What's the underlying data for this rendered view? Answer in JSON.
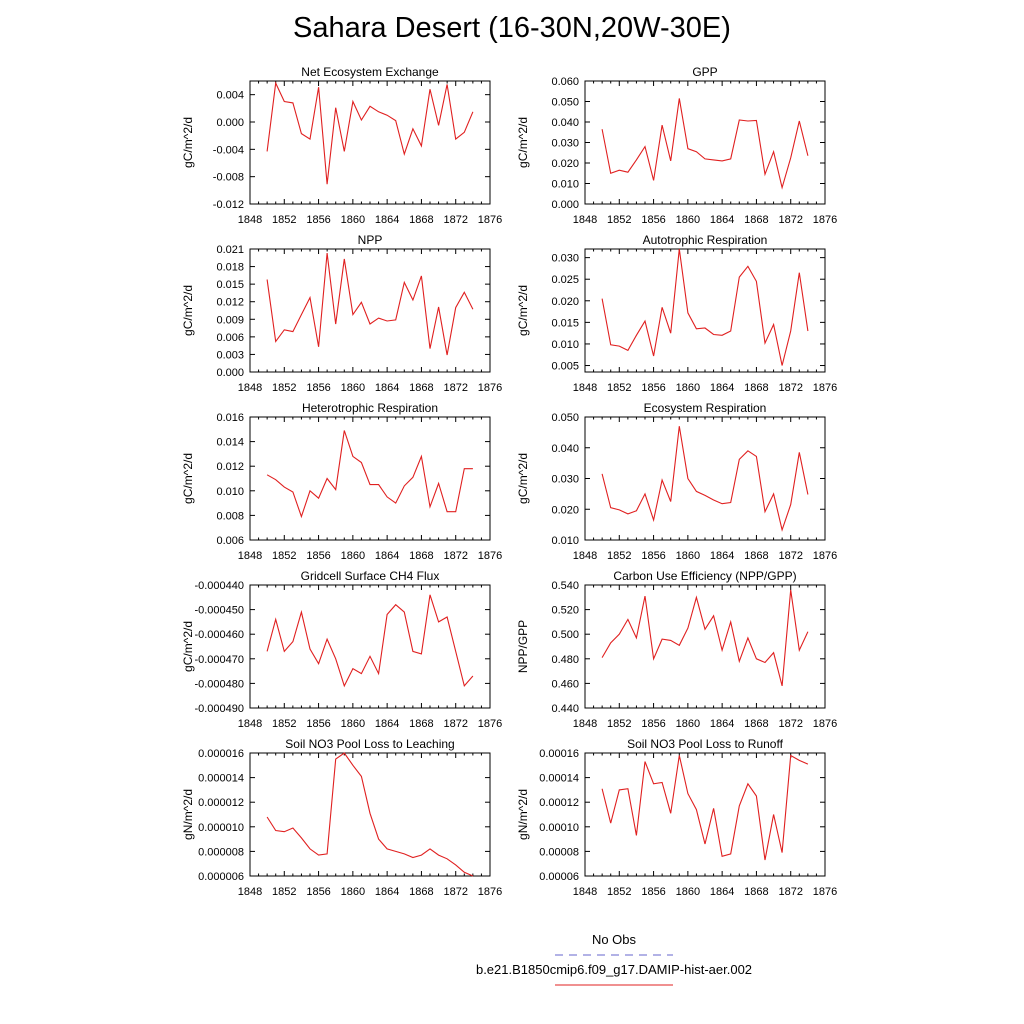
{
  "title": "Sahara Desert (16-30N,20W-30E)",
  "legend": {
    "obs_label": "No Obs",
    "obs_color": "#6666cc",
    "model_label": "b.e21.B1850cmip6.f09_g17.DAMIP-hist-aer.002",
    "model_color": "#e02020"
  },
  "chart_data": [
    {
      "type": "line",
      "title": "Net Ecosystem Exchange",
      "ylabel": "gC/m^2/d",
      "xlim": [
        1848,
        1876
      ],
      "xticks": [
        "1848",
        "1852",
        "1856",
        "1860",
        "1864",
        "1868",
        "1872",
        "1876"
      ],
      "ylim": [
        -0.012,
        0.006
      ],
      "yticks": [
        "-0.012",
        "-0.008",
        "-0.004",
        "0.000",
        "0.004"
      ],
      "x": [
        1850,
        1851,
        1852,
        1853,
        1854,
        1855,
        1856,
        1857,
        1858,
        1859,
        1860,
        1861,
        1862,
        1863,
        1864,
        1865,
        1866,
        1867,
        1868,
        1869,
        1870,
        1871,
        1872,
        1873,
        1874
      ],
      "values": [
        -0.0043,
        0.0057,
        0.003,
        0.0028,
        -0.0017,
        -0.0025,
        0.0051,
        -0.0091,
        0.0021,
        -0.0043,
        0.003,
        0.0003,
        0.0023,
        0.0015,
        0.001,
        0.0002,
        -0.0047,
        -0.001,
        -0.0035,
        0.0048,
        -0.0005,
        0.0055,
        -0.0025,
        -0.0015,
        0.0015
      ]
    },
    {
      "type": "line",
      "title": "GPP",
      "ylabel": "gC/m^2/d",
      "xlim": [
        1848,
        1876
      ],
      "xticks": [
        "1848",
        "1852",
        "1856",
        "1860",
        "1864",
        "1868",
        "1872",
        "1876"
      ],
      "ylim": [
        0.0,
        0.06
      ],
      "yticks": [
        "0.000",
        "0.010",
        "0.020",
        "0.030",
        "0.040",
        "0.050",
        "0.060"
      ],
      "x": [
        1850,
        1851,
        1852,
        1853,
        1854,
        1855,
        1856,
        1857,
        1858,
        1859,
        1860,
        1861,
        1862,
        1863,
        1864,
        1865,
        1866,
        1867,
        1868,
        1869,
        1870,
        1871,
        1872,
        1873,
        1874
      ],
      "values": [
        0.0365,
        0.015,
        0.0165,
        0.0155,
        0.0215,
        0.028,
        0.0115,
        0.0385,
        0.021,
        0.0515,
        0.027,
        0.0255,
        0.022,
        0.0215,
        0.021,
        0.022,
        0.041,
        0.0405,
        0.0408,
        0.0145,
        0.0255,
        0.008,
        0.0225,
        0.0405,
        0.0235
      ]
    },
    {
      "type": "line",
      "title": "NPP",
      "ylabel": "gC/m^2/d",
      "xlim": [
        1848,
        1876
      ],
      "xticks": [
        "1848",
        "1852",
        "1856",
        "1860",
        "1864",
        "1868",
        "1872",
        "1876"
      ],
      "ylim": [
        0.0,
        0.021
      ],
      "yticks": [
        "0.000",
        "0.003",
        "0.006",
        "0.009",
        "0.012",
        "0.015",
        "0.018",
        "0.021"
      ],
      "x": [
        1850,
        1851,
        1852,
        1853,
        1854,
        1855,
        1856,
        1857,
        1858,
        1859,
        1860,
        1861,
        1862,
        1863,
        1864,
        1865,
        1866,
        1867,
        1868,
        1869,
        1870,
        1871,
        1872,
        1873,
        1874
      ],
      "values": [
        0.0158,
        0.0052,
        0.0072,
        0.0069,
        0.0098,
        0.0127,
        0.0043,
        0.0203,
        0.0082,
        0.0193,
        0.0098,
        0.0119,
        0.0082,
        0.0092,
        0.0087,
        0.0089,
        0.0153,
        0.0123,
        0.0164,
        0.004,
        0.0111,
        0.0029,
        0.011,
        0.0136,
        0.0107
      ]
    },
    {
      "type": "line",
      "title": "Autotrophic Respiration",
      "ylabel": "gC/m^2/d",
      "xlim": [
        1848,
        1876
      ],
      "xticks": [
        "1848",
        "1852",
        "1856",
        "1860",
        "1864",
        "1868",
        "1872",
        "1876"
      ],
      "ylim": [
        0.0035,
        0.032
      ],
      "yticks": [
        "0.005",
        "0.010",
        "0.015",
        "0.020",
        "0.025",
        "0.030"
      ],
      "x": [
        1850,
        1851,
        1852,
        1853,
        1854,
        1855,
        1856,
        1857,
        1858,
        1859,
        1860,
        1861,
        1862,
        1863,
        1864,
        1865,
        1866,
        1867,
        1868,
        1869,
        1870,
        1871,
        1872,
        1873,
        1874
      ],
      "values": [
        0.0205,
        0.0098,
        0.0095,
        0.0085,
        0.012,
        0.0153,
        0.0072,
        0.0185,
        0.0125,
        0.032,
        0.0172,
        0.0135,
        0.0137,
        0.0122,
        0.012,
        0.013,
        0.0255,
        0.028,
        0.0245,
        0.0102,
        0.0145,
        0.005,
        0.013,
        0.0265,
        0.013
      ]
    },
    {
      "type": "line",
      "title": "Heterotrophic Respiration",
      "ylabel": "gC/m^2/d",
      "xlim": [
        1848,
        1876
      ],
      "xticks": [
        "1848",
        "1852",
        "1856",
        "1860",
        "1864",
        "1868",
        "1872",
        "1876"
      ],
      "ylim": [
        0.006,
        0.016
      ],
      "yticks": [
        "0.006",
        "0.008",
        "0.010",
        "0.012",
        "0.014",
        "0.016"
      ],
      "x": [
        1850,
        1851,
        1852,
        1853,
        1854,
        1855,
        1856,
        1857,
        1858,
        1859,
        1860,
        1861,
        1862,
        1863,
        1864,
        1865,
        1866,
        1867,
        1868,
        1869,
        1870,
        1871,
        1872,
        1873,
        1874
      ],
      "values": [
        0.0113,
        0.0109,
        0.0103,
        0.0099,
        0.0079,
        0.01,
        0.0094,
        0.011,
        0.0101,
        0.0149,
        0.0128,
        0.0123,
        0.0105,
        0.0105,
        0.0095,
        0.009,
        0.0104,
        0.0111,
        0.0128,
        0.0087,
        0.0106,
        0.0083,
        0.0083,
        0.0118,
        0.0118
      ]
    },
    {
      "type": "line",
      "title": "Ecosystem Respiration",
      "ylabel": "gC/m^2/d",
      "xlim": [
        1848,
        1876
      ],
      "xticks": [
        "1848",
        "1852",
        "1856",
        "1860",
        "1864",
        "1868",
        "1872",
        "1876"
      ],
      "ylim": [
        0.01,
        0.05
      ],
      "yticks": [
        "0.010",
        "0.020",
        "0.030",
        "0.040",
        "0.050"
      ],
      "x": [
        1850,
        1851,
        1852,
        1853,
        1854,
        1855,
        1856,
        1857,
        1858,
        1859,
        1860,
        1861,
        1862,
        1863,
        1864,
        1865,
        1866,
        1867,
        1868,
        1869,
        1870,
        1871,
        1872,
        1873,
        1874
      ],
      "values": [
        0.0315,
        0.0205,
        0.0198,
        0.0185,
        0.0195,
        0.025,
        0.0165,
        0.0295,
        0.0225,
        0.047,
        0.03,
        0.0258,
        0.0245,
        0.023,
        0.0218,
        0.0222,
        0.0362,
        0.039,
        0.0372,
        0.0192,
        0.025,
        0.0133,
        0.0215,
        0.0385,
        0.0248
      ]
    },
    {
      "type": "line",
      "title": "Gridcell Surface CH4 Flux",
      "ylabel": "gC/m^2/d",
      "xlim": [
        1848,
        1876
      ],
      "xticks": [
        "1848",
        "1852",
        "1856",
        "1860",
        "1864",
        "1868",
        "1872",
        "1876"
      ],
      "ylim": [
        -0.00049,
        -0.00044
      ],
      "yticks": [
        "-0.000490",
        "-0.000480",
        "-0.000470",
        "-0.000460",
        "-0.000450",
        "-0.000440"
      ],
      "x": [
        1850,
        1851,
        1852,
        1853,
        1854,
        1855,
        1856,
        1857,
        1858,
        1859,
        1860,
        1861,
        1862,
        1863,
        1864,
        1865,
        1866,
        1867,
        1868,
        1869,
        1870,
        1871,
        1872,
        1873,
        1874
      ],
      "values": [
        -0.000467,
        -0.000454,
        -0.000467,
        -0.000463,
        -0.000451,
        -0.000466,
        -0.000472,
        -0.000462,
        -0.00047,
        -0.000481,
        -0.000474,
        -0.000476,
        -0.000469,
        -0.000476,
        -0.000452,
        -0.000448,
        -0.000451,
        -0.000467,
        -0.000468,
        -0.000444,
        -0.000455,
        -0.000453,
        -0.000467,
        -0.000481,
        -0.000477
      ]
    },
    {
      "type": "line",
      "title": "Carbon Use Efficiency (NPP/GPP)",
      "ylabel": "NPP/GPP",
      "xlim": [
        1848,
        1876
      ],
      "xticks": [
        "1848",
        "1852",
        "1856",
        "1860",
        "1864",
        "1868",
        "1872",
        "1876"
      ],
      "ylim": [
        0.44,
        0.54
      ],
      "yticks": [
        "0.440",
        "0.460",
        "0.480",
        "0.500",
        "0.520",
        "0.540"
      ],
      "x": [
        1850,
        1851,
        1852,
        1853,
        1854,
        1855,
        1856,
        1857,
        1858,
        1859,
        1860,
        1861,
        1862,
        1863,
        1864,
        1865,
        1866,
        1867,
        1868,
        1869,
        1870,
        1871,
        1872,
        1873,
        1874
      ],
      "values": [
        0.481,
        0.493,
        0.5,
        0.512,
        0.497,
        0.531,
        0.48,
        0.496,
        0.495,
        0.491,
        0.505,
        0.53,
        0.504,
        0.515,
        0.487,
        0.51,
        0.478,
        0.497,
        0.48,
        0.477,
        0.485,
        0.458,
        0.536,
        0.487,
        0.502
      ]
    },
    {
      "type": "line",
      "title": "Soil NO3 Pool Loss to Leaching",
      "ylabel": "gN/m^2/d",
      "xlim": [
        1848,
        1876
      ],
      "xticks": [
        "1848",
        "1852",
        "1856",
        "1860",
        "1864",
        "1868",
        "1872",
        "1876"
      ],
      "ylim": [
        6e-06,
        1.6e-05
      ],
      "yticks": [
        "0.000006",
        "0.000008",
        "0.000010",
        "0.000012",
        "0.000014",
        "0.000016"
      ],
      "x": [
        1850,
        1851,
        1852,
        1853,
        1854,
        1855,
        1856,
        1857,
        1858,
        1859,
        1860,
        1861,
        1862,
        1863,
        1864,
        1865,
        1866,
        1867,
        1868,
        1869,
        1870,
        1871,
        1872,
        1873,
        1874
      ],
      "values": [
        1.08e-05,
        9.7e-06,
        9.6e-06,
        9.9e-06,
        9.1e-06,
        8.2e-06,
        7.7e-06,
        7.8e-06,
        1.55e-05,
        1.6e-05,
        1.5e-05,
        1.41e-05,
        1.11e-05,
        9e-06,
        8.2e-06,
        8e-06,
        7.8e-06,
        7.5e-06,
        7.7e-06,
        8.2e-06,
        7.7e-06,
        7.4e-06,
        6.9e-06,
        6.3e-06,
        6e-06
      ]
    },
    {
      "type": "line",
      "title": "Soil NO3 Pool Loss to Runoff",
      "ylabel": "gN/m^2/d",
      "xlim": [
        1848,
        1876
      ],
      "xticks": [
        "1848",
        "1852",
        "1856",
        "1860",
        "1864",
        "1868",
        "1872",
        "1876"
      ],
      "ylim": [
        6e-05,
        0.00016
      ],
      "yticks": [
        "0.00006",
        "0.00008",
        "0.00010",
        "0.00012",
        "0.00014",
        "0.00016"
      ],
      "x": [
        1850,
        1851,
        1852,
        1853,
        1854,
        1855,
        1856,
        1857,
        1858,
        1859,
        1860,
        1861,
        1862,
        1863,
        1864,
        1865,
        1866,
        1867,
        1868,
        1869,
        1870,
        1871,
        1872,
        1873,
        1874
      ],
      "values": [
        0.000131,
        0.000103,
        0.00013,
        0.000131,
        9.3e-05,
        0.000153,
        0.000135,
        0.000136,
        0.000111,
        0.000158,
        0.000127,
        0.000114,
        8.6e-05,
        0.000115,
        7.6e-05,
        7.8e-05,
        0.000117,
        0.000135,
        0.000125,
        7.3e-05,
        0.00011,
        7.9e-05,
        0.000158,
        0.000154,
        0.000151
      ]
    }
  ]
}
